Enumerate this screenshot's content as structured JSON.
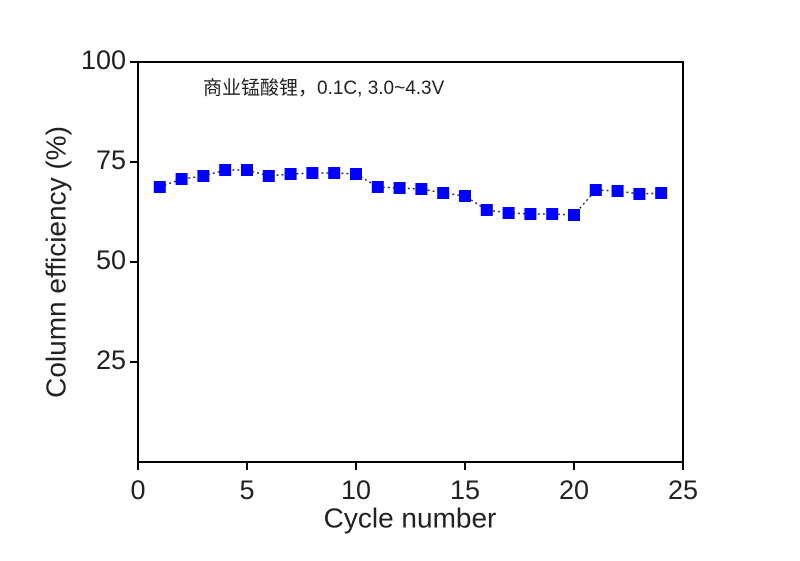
{
  "chart_data": {
    "type": "line",
    "annotation": "商业锰酸锂，0.1C, 3.0~4.3V",
    "x_label": "Cycle number",
    "y_label": "Column efficiency (%)",
    "x": [
      1,
      2,
      3,
      4,
      5,
      6,
      7,
      8,
      9,
      10,
      11,
      12,
      13,
      14,
      15,
      16,
      17,
      18,
      19,
      20,
      21,
      22,
      23,
      24
    ],
    "series": [
      {
        "color": "#0000ff",
        "values": [
          68.75,
          70.75,
          71.5,
          73,
          73,
          71.5,
          72,
          72.25,
          72.25,
          72,
          68.75,
          68.5,
          68.25,
          67.25,
          66.5,
          63,
          62.25,
          62,
          62,
          61.75,
          68,
          67.75,
          67,
          67.25
        ]
      }
    ],
    "xlim": [
      0,
      25
    ],
    "xticks": [
      0,
      5,
      10,
      15,
      20,
      25
    ],
    "ylim": [
      0,
      100
    ],
    "yticks": [
      25,
      50,
      75,
      100
    ]
  }
}
